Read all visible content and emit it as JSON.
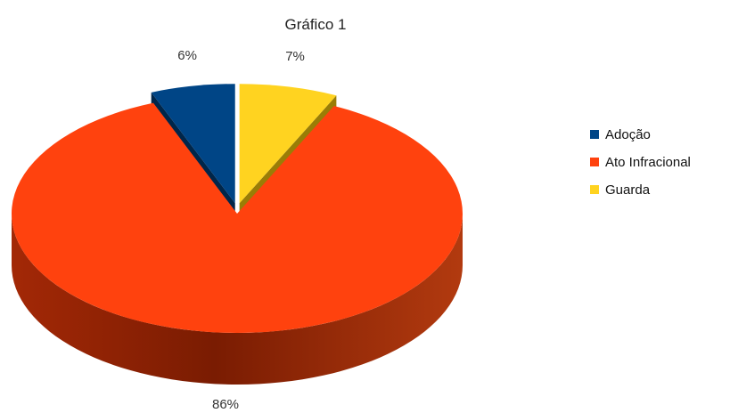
{
  "chart_data": {
    "type": "pie",
    "title": "Gráfico 1",
    "labels": [
      "Adoção",
      "Ato Infracional",
      "Guarda"
    ],
    "values": [
      6,
      86,
      7
    ],
    "value_labels": [
      "6%",
      "86%",
      "7%"
    ],
    "colors": [
      "#004586",
      "#ff420e",
      "#ffd320"
    ],
    "exploded": [
      "Adoção",
      "Guarda"
    ],
    "three_d": true,
    "legend_position": "right"
  }
}
